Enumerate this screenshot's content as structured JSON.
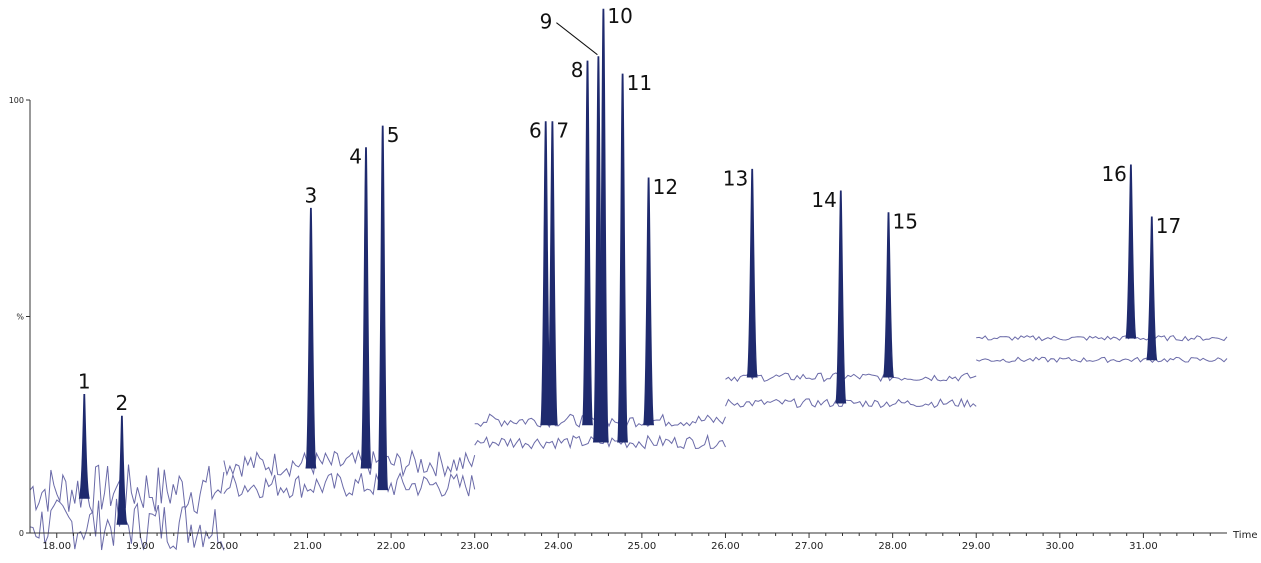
{
  "chart_data": {
    "type": "line",
    "title": "",
    "xlabel": "Time",
    "ylabel": "%",
    "xlim": [
      17.68,
      32.0
    ],
    "ylim": [
      0,
      100
    ],
    "x_ticks": [
      "18.00",
      "19.00",
      "20.00",
      "21.00",
      "22.00",
      "23.00",
      "24.00",
      "25.00",
      "26.00",
      "27.00",
      "28.00",
      "29.00",
      "30.00",
      "31.00"
    ],
    "x_tick_values": [
      18,
      19,
      20,
      21,
      22,
      23,
      24,
      25,
      26,
      27,
      28,
      29,
      30,
      31
    ],
    "y_ticks": [
      "0",
      "%",
      "100"
    ],
    "y_tick_values": [
      0,
      50,
      100
    ],
    "grid": false,
    "trace_color": "#6a6aa8",
    "peak_color": "#1f2a6e",
    "windows": [
      {
        "start": 17.68,
        "end": 20.0,
        "upper_baseline": 10,
        "lower_baseline": 2,
        "noise": 6
      },
      {
        "start": 20.0,
        "end": 23.0,
        "upper_baseline": 16,
        "lower_baseline": 11,
        "noise": 3
      },
      {
        "start": 23.0,
        "end": 26.0,
        "upper_baseline": 26,
        "lower_baseline": 21,
        "noise": 1.5
      },
      {
        "start": 26.0,
        "end": 29.0,
        "upper_baseline": 36,
        "lower_baseline": 30,
        "noise": 1
      },
      {
        "start": 29.0,
        "end": 32.0,
        "upper_baseline": 45,
        "lower_baseline": 40,
        "noise": 0.6
      }
    ],
    "peaks": [
      {
        "label": "1",
        "rt": 18.33,
        "apex": 32,
        "base": 8,
        "window": 0
      },
      {
        "label": "2",
        "rt": 18.78,
        "apex": 27,
        "base": 2,
        "window": 0
      },
      {
        "label": "3",
        "rt": 21.04,
        "apex": 75,
        "base": 15,
        "window": 1
      },
      {
        "label": "4",
        "rt": 21.7,
        "apex": 89,
        "base": 15,
        "window": 1
      },
      {
        "label": "5",
        "rt": 21.9,
        "apex": 94,
        "base": 10,
        "window": 1
      },
      {
        "label": "6",
        "rt": 23.85,
        "apex": 95,
        "base": 25,
        "window": 2
      },
      {
        "label": "7",
        "rt": 23.93,
        "apex": 95,
        "base": 25,
        "window": 2
      },
      {
        "label": "8",
        "rt": 24.35,
        "apex": 109,
        "base": 25,
        "window": 2
      },
      {
        "label": "9",
        "rt": 24.48,
        "apex": 110,
        "base": 21,
        "window": 2
      },
      {
        "label": "10",
        "rt": 24.54,
        "apex": 121,
        "base": 21,
        "window": 2
      },
      {
        "label": "11",
        "rt": 24.77,
        "apex": 106,
        "base": 21,
        "window": 2
      },
      {
        "label": "12",
        "rt": 25.08,
        "apex": 82,
        "base": 25,
        "window": 2
      },
      {
        "label": "13",
        "rt": 26.32,
        "apex": 84,
        "base": 36,
        "window": 3
      },
      {
        "label": "14",
        "rt": 27.38,
        "apex": 79,
        "base": 30,
        "window": 3
      },
      {
        "label": "15",
        "rt": 27.95,
        "apex": 74,
        "base": 36,
        "window": 3
      },
      {
        "label": "16",
        "rt": 30.85,
        "apex": 85,
        "base": 45,
        "window": 4
      },
      {
        "label": "17",
        "rt": 31.1,
        "apex": 73,
        "base": 40,
        "window": 4
      }
    ]
  }
}
